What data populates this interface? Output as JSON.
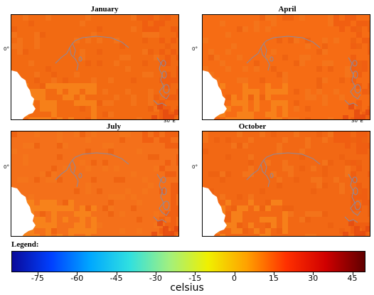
{
  "panels": [
    {
      "title": "January",
      "lat_label": "0°",
      "lon_label": "30°E",
      "base": "#f26a12"
    },
    {
      "title": "April",
      "lat_label": "0°",
      "lon_label": "30°E",
      "base": "#f66c14"
    },
    {
      "title": "July",
      "lat_label": "0°",
      "lon_label": "30°E",
      "base": "#f4701a"
    },
    {
      "title": "October",
      "lat_label": "0°",
      "lon_label": "30°E",
      "base": "#f26814"
    }
  ],
  "legend": {
    "title": "Legend:",
    "unit": "celsius",
    "ticks": [
      "-75",
      "-60",
      "-45",
      "-30",
      "-15",
      "0",
      "15",
      "30",
      "45"
    ],
    "range": [
      -85,
      50
    ],
    "colors": [
      "#0a0a9a",
      "#0040ff",
      "#00a8ff",
      "#30e0e0",
      "#a0f080",
      "#f0f000",
      "#ffa000",
      "#ff3000",
      "#d00000",
      "#600000"
    ]
  }
}
